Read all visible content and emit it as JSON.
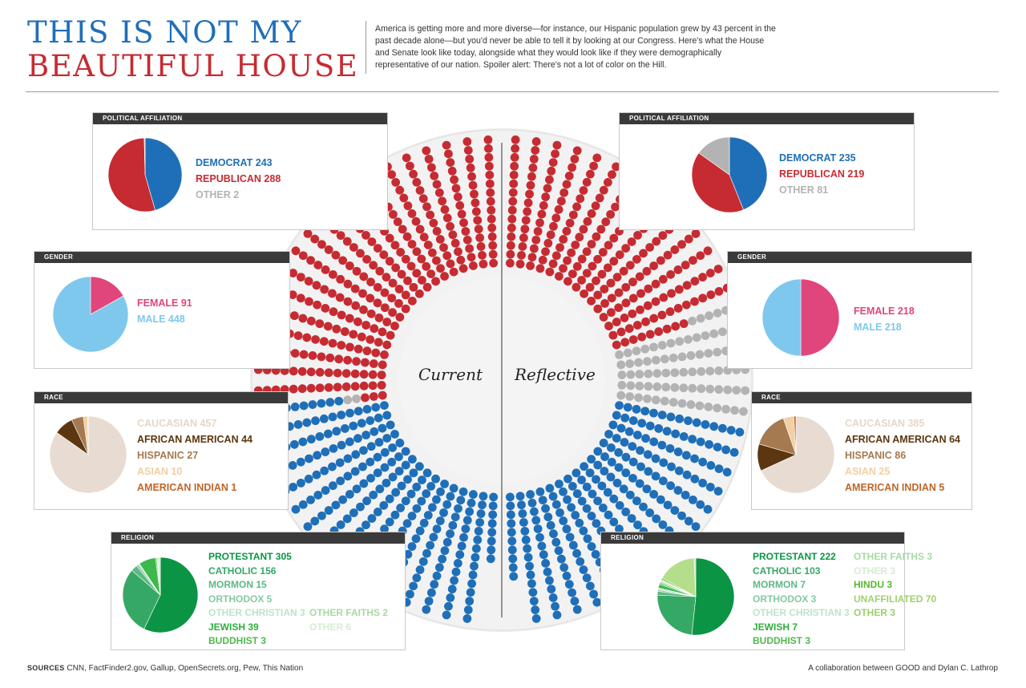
{
  "title": {
    "line1": "THIS IS NOT MY",
    "line2": "BEAUTIFUL HOUSE"
  },
  "intro": "America is getting more and more diverse—for instance, our Hispanic population grew by 43 percent in the past decade alone—but you'd never be able to tell it by looking at our Congress. Here's what the House and Senate look like today, alongside what they would look like if they were demographically representative of our nation. Spoiler alert: There's not a lot of color on the Hill.",
  "chart_labels": {
    "current": "Current",
    "reflective": "Reflective"
  },
  "footer": {
    "sources_label": "SOURCES",
    "sources": "CNN, FactFinder2.gov, Gallup, OpenSecrets.org, Pew, This Nation",
    "credit": "A collaboration between GOOD and Dylan C. Lathrop"
  },
  "colors": {
    "democrat": "#1f6fb8",
    "republican": "#c62b32",
    "other": "#b3b3b3",
    "female": "#e0457b",
    "male": "#7fc8ed"
  },
  "chart_data": [
    {
      "id": "current-political",
      "type": "pie",
      "title": "POLITICAL AFFILIATION",
      "slices": [
        {
          "label": "DEMOCRAT",
          "value": 243,
          "color": "#1f6fb8",
          "text_color": "#1f6fb8"
        },
        {
          "label": "REPUBLICAN",
          "value": 288,
          "color": "#c62b32",
          "text_color": "#c62b32"
        },
        {
          "label": "OTHER",
          "value": 2,
          "color": "#b3b3b3",
          "text_color": "#b3b3b3"
        }
      ]
    },
    {
      "id": "current-gender",
      "type": "pie",
      "title": "GENDER",
      "slices": [
        {
          "label": "FEMALE",
          "value": 91,
          "color": "#e0457b",
          "text_color": "#e0457b"
        },
        {
          "label": "MALE",
          "value": 448,
          "color": "#7fc8ed",
          "text_color": "#7fc8ed"
        }
      ]
    },
    {
      "id": "current-race",
      "type": "pie",
      "title": "RACE",
      "slices": [
        {
          "label": "CAUCASIAN",
          "value": 457,
          "color": "#e8dcd2",
          "text_color": "#e6d6c8"
        },
        {
          "label": "AFRICAN AMERICAN",
          "value": 44,
          "color": "#5c3610",
          "text_color": "#5c3610"
        },
        {
          "label": "HISPANIC",
          "value": 27,
          "color": "#a57a50",
          "text_color": "#a57a50"
        },
        {
          "label": "ASIAN",
          "value": 10,
          "color": "#f2cfa4",
          "text_color": "#f2cfa4"
        },
        {
          "label": "AMERICAN INDIAN",
          "value": 1,
          "color": "#c0652a",
          "text_color": "#c0652a"
        }
      ]
    },
    {
      "id": "current-religion",
      "type": "pie",
      "title": "RELIGION",
      "slices": [
        {
          "label": "PROTESTANT",
          "value": 305,
          "color": "#0b9444",
          "text_color": "#0b9444"
        },
        {
          "label": "CATHOLIC",
          "value": 156,
          "color": "#36a866",
          "text_color": "#36a866"
        },
        {
          "label": "MORMON",
          "value": 15,
          "color": "#5cb884",
          "text_color": "#5cb884"
        },
        {
          "label": "ORTHODOX",
          "value": 5,
          "color": "#85c9a0",
          "text_color": "#85c9a0"
        },
        {
          "label": "OTHER CHRISTIAN",
          "value": 3,
          "color": "#bde3c9",
          "text_color": "#bde3c9"
        },
        {
          "label": "JEWISH",
          "value": 39,
          "color": "#3db84a",
          "text_color": "#2fae3e"
        },
        {
          "label": "BUDDHIST",
          "value": 3,
          "color": "#5fc15d",
          "text_color": "#4fb84f"
        },
        {
          "label": "OTHER FAITHS",
          "value": 2,
          "color": "#a9d9a4",
          "text_color": "#a9d9a4"
        },
        {
          "label": "OTHER",
          "value": 6,
          "color": "#d5ecd1",
          "text_color": "#d5ecd1"
        }
      ]
    },
    {
      "id": "reflective-political",
      "type": "pie",
      "title": "POLITICAL AFFILIATION",
      "slices": [
        {
          "label": "DEMOCRAT",
          "value": 235,
          "color": "#1f6fb8",
          "text_color": "#1f6fb8"
        },
        {
          "label": "REPUBLICAN",
          "value": 219,
          "color": "#c62b32",
          "text_color": "#c62b32"
        },
        {
          "label": "OTHER",
          "value": 81,
          "color": "#b3b3b3",
          "text_color": "#b3b3b3"
        }
      ]
    },
    {
      "id": "reflective-gender",
      "type": "pie",
      "title": "GENDER",
      "slices": [
        {
          "label": "FEMALE",
          "value": 218,
          "color": "#e0457b",
          "text_color": "#e0457b"
        },
        {
          "label": "MALE",
          "value": 218,
          "color": "#7fc8ed",
          "text_color": "#7fc8ed"
        }
      ]
    },
    {
      "id": "reflective-race",
      "type": "pie",
      "title": "RACE",
      "slices": [
        {
          "label": "CAUCASIAN",
          "value": 385,
          "color": "#e8dcd2",
          "text_color": "#e6d6c8"
        },
        {
          "label": "AFRICAN AMERICAN",
          "value": 64,
          "color": "#5c3610",
          "text_color": "#5c3610"
        },
        {
          "label": "HISPANIC",
          "value": 86,
          "color": "#a57a50",
          "text_color": "#a57a50"
        },
        {
          "label": "ASIAN",
          "value": 25,
          "color": "#f2cfa4",
          "text_color": "#f2cfa4"
        },
        {
          "label": "AMERICAN INDIAN",
          "value": 5,
          "color": "#c0652a",
          "text_color": "#c0652a"
        }
      ]
    },
    {
      "id": "reflective-religion",
      "type": "pie",
      "title": "RELIGION",
      "slices": [
        {
          "label": "PROTESTANT",
          "value": 222,
          "color": "#0b9444",
          "text_color": "#0b9444"
        },
        {
          "label": "CATHOLIC",
          "value": 103,
          "color": "#36a866",
          "text_color": "#36a866"
        },
        {
          "label": "MORMON",
          "value": 7,
          "color": "#5cb884",
          "text_color": "#5cb884"
        },
        {
          "label": "ORTHODOX",
          "value": 3,
          "color": "#85c9a0",
          "text_color": "#85c9a0"
        },
        {
          "label": "OTHER CHRISTIAN",
          "value": 3,
          "color": "#bde3c9",
          "text_color": "#bde3c9"
        },
        {
          "label": "JEWISH",
          "value": 7,
          "color": "#3db84a",
          "text_color": "#2fae3e"
        },
        {
          "label": "BUDDHIST",
          "value": 3,
          "color": "#5fc15d",
          "text_color": "#4fb84f"
        },
        {
          "label": "OTHER FAITHS",
          "value": 3,
          "color": "#a9d9a4",
          "text_color": "#a9d9a4"
        },
        {
          "label": "OTHER",
          "value": 3,
          "color": "#d5ecd1",
          "text_color": "#d5ecd1"
        },
        {
          "label": "HINDU",
          "value": 3,
          "color": "#6abf3f",
          "text_color": "#5cb82e"
        },
        {
          "label": "UNAFFILIATED",
          "value": 70,
          "color": "#b5de8c",
          "text_color": "#9fd070"
        },
        {
          "label": "OTHER",
          "value": 3,
          "color": "#c9e6a8",
          "text_color": "#9ccf6d"
        }
      ]
    },
    {
      "id": "seat-rings",
      "type": "dot-ring",
      "current": [
        {
          "party": "REPUBLICAN",
          "seats": 288
        },
        {
          "party": "OTHER",
          "seats": 2
        },
        {
          "party": "DEMOCRAT",
          "seats": 243
        }
      ],
      "reflective": [
        {
          "party": "REPUBLICAN",
          "seats": 219
        },
        {
          "party": "OTHER",
          "seats": 81
        },
        {
          "party": "DEMOCRAT",
          "seats": 235
        }
      ]
    }
  ]
}
